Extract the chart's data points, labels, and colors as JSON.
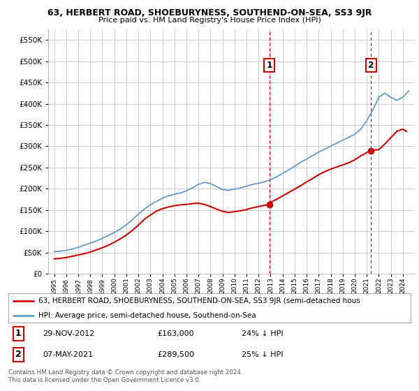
{
  "title": "63, HERBERT ROAD, SHOEBURYNESS, SOUTHEND-ON-SEA, SS3 9JR",
  "subtitle": "Price paid vs. HM Land Registry's House Price Index (HPI)",
  "background_color": "#ffffff",
  "plot_bg_color": "#ffffff",
  "grid_color": "#cccccc",
  "ylim": [
    0,
    575000
  ],
  "yticks": [
    0,
    50000,
    100000,
    150000,
    200000,
    250000,
    300000,
    350000,
    400000,
    450000,
    500000,
    550000
  ],
  "sale_points": [
    {
      "date_num": 2012.91,
      "price": 163000,
      "label": "1"
    },
    {
      "date_num": 2021.35,
      "price": 289500,
      "label": "2"
    }
  ],
  "annotation1": {
    "label": "1",
    "date": "29-NOV-2012",
    "price": "£163,000",
    "pct": "24% ↓ HPI"
  },
  "annotation2": {
    "label": "2",
    "date": "07-MAY-2021",
    "price": "£289,500",
    "pct": "25% ↓ HPI"
  },
  "legend_line1": "63, HERBERT ROAD, SHOEBURYNESS, SOUTHEND-ON-SEA, SS3 9JR (semi-detached hous",
  "legend_line2": "HPI: Average price, semi-detached house, Southend-on-Sea",
  "footer": "Contains HM Land Registry data © Crown copyright and database right 2024.\nThis data is licensed under the Open Government Licence v3.0.",
  "red_color": "#cc0000",
  "blue_color": "#6699cc",
  "years_blue": [
    1995,
    1995.5,
    1996,
    1996.5,
    1997,
    1997.5,
    1998,
    1998.5,
    1999,
    1999.5,
    2000,
    2000.5,
    2001,
    2001.5,
    2002,
    2002.5,
    2003,
    2003.5,
    2004,
    2004.5,
    2005,
    2005.5,
    2006,
    2006.5,
    2007,
    2007.5,
    2008,
    2008.5,
    2009,
    2009.5,
    2010,
    2010.5,
    2011,
    2011.5,
    2012,
    2012.5,
    2013,
    2013.5,
    2014,
    2014.5,
    2015,
    2015.5,
    2016,
    2016.5,
    2017,
    2017.5,
    2018,
    2018.5,
    2019,
    2019.5,
    2020,
    2020.5,
    2021,
    2021.5,
    2022,
    2022.5,
    2023,
    2023.5,
    2024,
    2024.5
  ],
  "blue_values": [
    52000,
    53000,
    55000,
    58000,
    62000,
    67000,
    72000,
    77000,
    83000,
    90000,
    97000,
    105000,
    115000,
    127000,
    140000,
    152000,
    162000,
    170000,
    178000,
    183000,
    187000,
    190000,
    195000,
    202000,
    210000,
    215000,
    212000,
    205000,
    198000,
    196000,
    199000,
    202000,
    206000,
    210000,
    213000,
    216000,
    221000,
    228000,
    236000,
    244000,
    253000,
    262000,
    270000,
    278000,
    286000,
    293000,
    300000,
    307000,
    314000,
    321000,
    328000,
    340000,
    360000,
    385000,
    415000,
    425000,
    415000,
    408000,
    415000,
    430000
  ],
  "years_red": [
    1995,
    1995.5,
    1996,
    1996.5,
    1997,
    1997.5,
    1998,
    1998.5,
    1999,
    1999.5,
    2000,
    2000.5,
    2001,
    2001.5,
    2002,
    2002.5,
    2003,
    2003.5,
    2004,
    2004.5,
    2005,
    2005.5,
    2006,
    2006.5,
    2007,
    2007.5,
    2008,
    2008.5,
    2009,
    2009.5,
    2010,
    2010.5,
    2011,
    2011.5,
    2012,
    2012.5,
    2012.91,
    2013,
    2013.5,
    2014,
    2014.5,
    2015,
    2015.5,
    2016,
    2016.5,
    2017,
    2017.5,
    2018,
    2018.5,
    2019,
    2019.5,
    2020,
    2020.5,
    2021,
    2021.35,
    2022,
    2022.5,
    2023,
    2023.5,
    2024,
    2024.3
  ],
  "red_values": [
    35000,
    36000,
    38000,
    41000,
    44000,
    47000,
    51000,
    56000,
    61000,
    67000,
    74000,
    82000,
    91000,
    102000,
    114000,
    128000,
    138000,
    147000,
    153000,
    157000,
    160000,
    162000,
    163000,
    165000,
    166000,
    163000,
    158000,
    152000,
    147000,
    144000,
    146000,
    148000,
    151000,
    155000,
    158000,
    161000,
    163000,
    168000,
    175000,
    183000,
    191000,
    199000,
    207000,
    216000,
    224000,
    233000,
    240000,
    246000,
    251000,
    256000,
    261000,
    268000,
    277000,
    285000,
    289500,
    292000,
    305000,
    320000,
    335000,
    340000,
    335000
  ]
}
